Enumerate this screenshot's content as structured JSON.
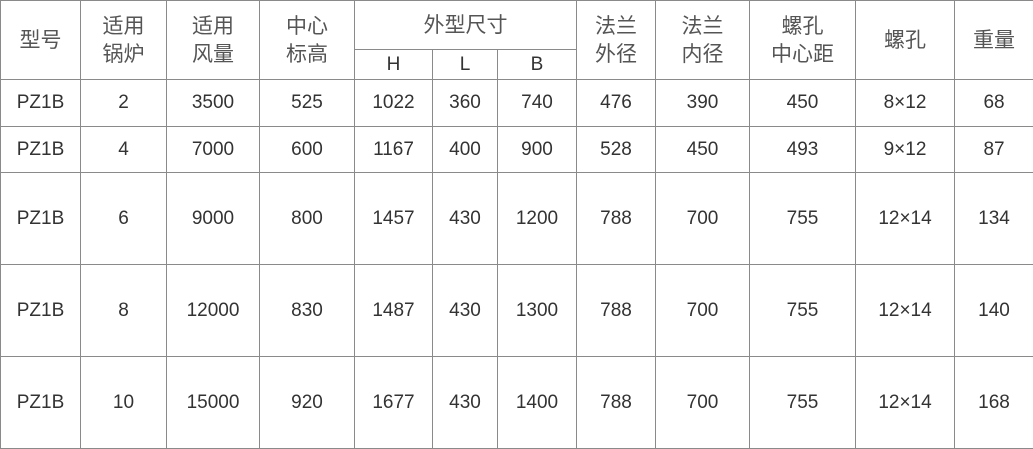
{
  "headers": {
    "model": "型号",
    "boiler": [
      "适用",
      "锅炉"
    ],
    "airflow": [
      "适用",
      "风量"
    ],
    "center_height": [
      "中心",
      "标高"
    ],
    "dimensions": "外型尺寸",
    "dim_sub": [
      "H",
      "L",
      "B"
    ],
    "flange_outer": [
      "法兰",
      "外径"
    ],
    "flange_inner": [
      "法兰",
      "内径"
    ],
    "bolt_pitch": [
      "螺孔",
      "中心距"
    ],
    "bolt_holes": "螺孔",
    "weight": "重量"
  },
  "rows": [
    [
      "PZ1B",
      "2",
      "3500",
      "525",
      "1022",
      "360",
      "740",
      "476",
      "390",
      "450",
      "8×12",
      "68"
    ],
    [
      "PZ1B",
      "4",
      "7000",
      "600",
      "1167",
      "400",
      "900",
      "528",
      "450",
      "493",
      "9×12",
      "87"
    ],
    [
      "PZ1B",
      "6",
      "9000",
      "800",
      "1457",
      "430",
      "1200",
      "788",
      "700",
      "755",
      "12×14",
      "134"
    ],
    [
      "PZ1B",
      "8",
      "12000",
      "830",
      "1487",
      "430",
      "1300",
      "788",
      "700",
      "755",
      "12×14",
      "140"
    ],
    [
      "PZ1B",
      "10",
      "15000",
      "920",
      "1677",
      "430",
      "1400",
      "788",
      "700",
      "755",
      "12×14",
      "168"
    ]
  ]
}
